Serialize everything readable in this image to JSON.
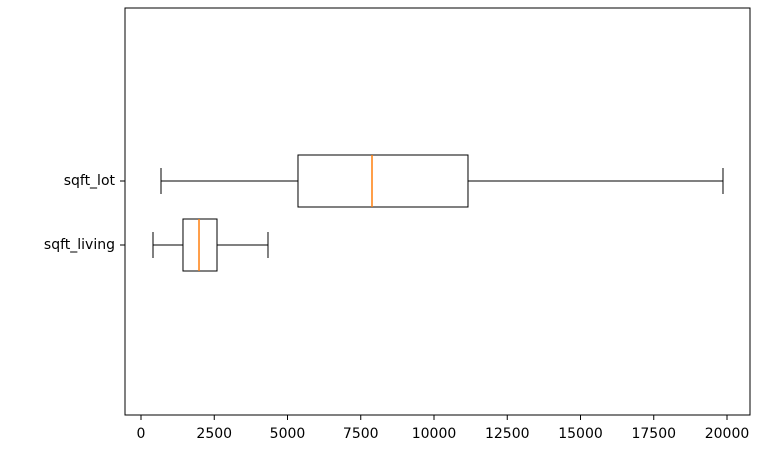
{
  "chart_data": {
    "type": "boxplot",
    "orientation": "horizontal",
    "boxes": [
      {
        "label": "sqft_living",
        "whislo": 410,
        "q1": 1433,
        "med": 1980,
        "q3": 2594,
        "whishi": 4334
      },
      {
        "label": "sqft_lot",
        "whislo": 683,
        "q1": 5358,
        "med": 7884,
        "q3": 11160,
        "whishi": 19863
      }
    ],
    "box_color": "#000000",
    "median_color": "#ff7f0e",
    "xlim": [
      -546,
      20785
    ],
    "xticks": [
      0,
      2500,
      5000,
      7500,
      10000,
      12500,
      15000,
      17500,
      20000
    ]
  }
}
